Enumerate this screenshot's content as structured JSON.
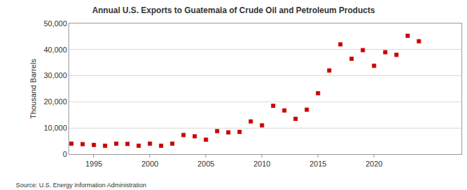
{
  "chart_data": {
    "type": "scatter",
    "title": "Annual U.S. Exports to Guatemala of Crude Oil and Petroleum Products",
    "y_label": "Thousand Barrels",
    "annotations": [
      "Source: U.S. Energy Information Administration"
    ],
    "x": [
      1993,
      1994,
      1995,
      1996,
      1997,
      1998,
      1999,
      2000,
      2001,
      2002,
      2003,
      2004,
      2005,
      2006,
      2007,
      2008,
      2009,
      2010,
      2011,
      2012,
      2013,
      2014,
      2015,
      2016,
      2017,
      2018,
      2019,
      2020,
      2021,
      2022,
      2023,
      2024
    ],
    "values": [
      4000,
      3800,
      3500,
      3200,
      4000,
      3900,
      3200,
      4000,
      3200,
      4000,
      7300,
      6800,
      5500,
      8800,
      8300,
      8500,
      12500,
      11000,
      18500,
      16700,
      13500,
      17000,
      23300,
      32000,
      42000,
      36500,
      39800,
      33800,
      39000,
      38000,
      45300,
      43200
    ],
    "color": "#cc0000",
    "marker": "square",
    "xlim": [
      1992.8,
      2027.8
    ],
    "xticks": [
      1995,
      2000,
      2005,
      2010,
      2015,
      2020
    ],
    "ylim": [
      0,
      50000
    ],
    "yticks": [
      0,
      {
        "value": 10000,
        "label": "10,000"
      },
      {
        "value": 20000,
        "label": "20,000"
      },
      {
        "value": 30000,
        "label": "30,000"
      },
      {
        "value": 40000,
        "label": "40,000"
      },
      {
        "value": 50000,
        "label": "50,000"
      }
    ],
    "grid": true
  }
}
